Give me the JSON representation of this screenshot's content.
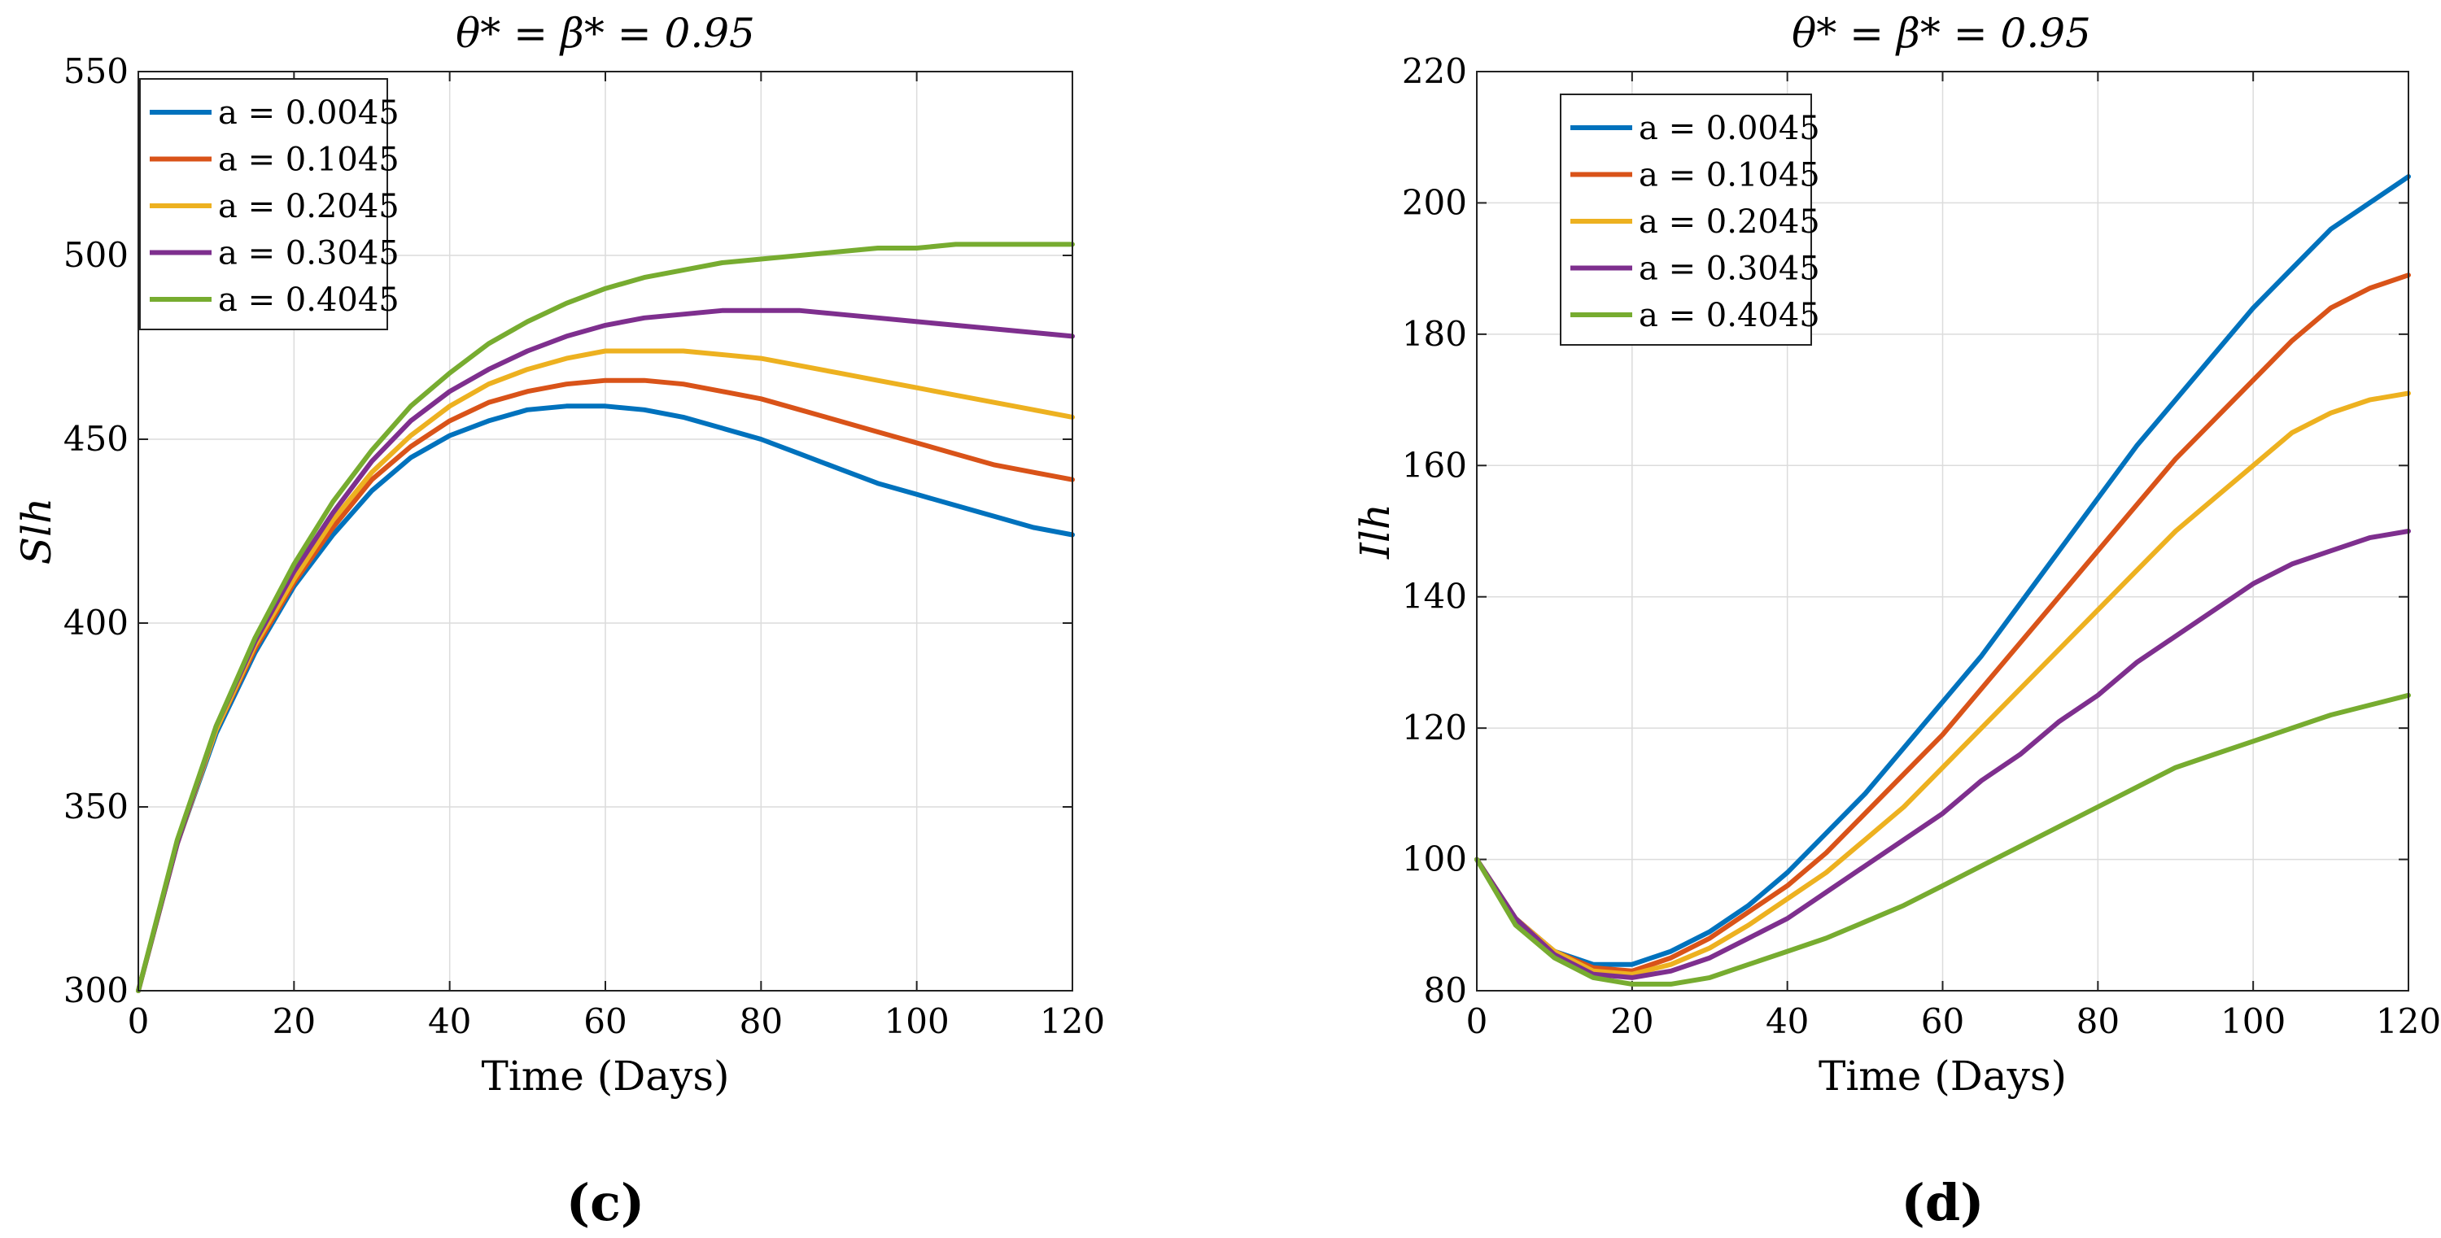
{
  "chart_data": [
    {
      "type": "line",
      "panel_label": "(c)",
      "title": "θ* = β* = 0.95",
      "xlabel": "Time (Days)",
      "ylabel": "Slh",
      "xlim": [
        0,
        120
      ],
      "ylim": [
        300,
        550
      ],
      "xticks": [
        0,
        20,
        40,
        60,
        80,
        100,
        120
      ],
      "yticks": [
        300,
        350,
        400,
        450,
        500,
        550
      ],
      "grid": true,
      "legend_position": "top-left",
      "x": [
        0,
        5,
        10,
        15,
        20,
        25,
        30,
        35,
        40,
        45,
        50,
        55,
        60,
        65,
        70,
        75,
        80,
        85,
        90,
        95,
        100,
        105,
        110,
        115,
        120
      ],
      "series": [
        {
          "name": "a = 0.0045",
          "color": "#0072BD",
          "values": [
            300,
            340,
            370,
            392,
            410,
            424,
            436,
            445,
            451,
            455,
            458,
            459,
            459,
            458,
            456,
            453,
            450,
            446,
            442,
            438,
            435,
            432,
            429,
            426,
            424
          ]
        },
        {
          "name": "a = 0.1045",
          "color": "#D95319",
          "values": [
            300,
            340,
            371,
            393,
            411,
            426,
            439,
            448,
            455,
            460,
            463,
            465,
            466,
            466,
            465,
            463,
            461,
            458,
            455,
            452,
            449,
            446,
            443,
            441,
            439
          ]
        },
        {
          "name": "a = 0.2045",
          "color": "#EDB120",
          "values": [
            300,
            340,
            371,
            394,
            412,
            428,
            441,
            451,
            459,
            465,
            469,
            472,
            474,
            474,
            474,
            473,
            472,
            470,
            468,
            466,
            464,
            462,
            460,
            458,
            456
          ]
        },
        {
          "name": "a = 0.3045",
          "color": "#7E2F8E",
          "values": [
            300,
            340,
            372,
            395,
            414,
            430,
            444,
            455,
            463,
            469,
            474,
            478,
            481,
            483,
            484,
            485,
            485,
            485,
            484,
            483,
            482,
            481,
            480,
            479,
            478
          ]
        },
        {
          "name": "a = 0.4045",
          "color": "#77AC30",
          "values": [
            300,
            341,
            372,
            396,
            416,
            433,
            447,
            459,
            468,
            476,
            482,
            487,
            491,
            494,
            496,
            498,
            499,
            500,
            501,
            502,
            502,
            503,
            503,
            503,
            503
          ]
        }
      ]
    },
    {
      "type": "line",
      "panel_label": "(d)",
      "title": "θ* = β* = 0.95",
      "xlabel": "Time (Days)",
      "ylabel": "Ilh",
      "xlim": [
        0,
        120
      ],
      "ylim": [
        80,
        220
      ],
      "xticks": [
        0,
        20,
        40,
        60,
        80,
        100,
        120
      ],
      "yticks": [
        80,
        100,
        120,
        140,
        160,
        180,
        200,
        220
      ],
      "grid": true,
      "legend_position": "top-left",
      "x": [
        0,
        5,
        10,
        15,
        20,
        25,
        30,
        35,
        40,
        45,
        50,
        55,
        60,
        65,
        70,
        75,
        80,
        85,
        90,
        95,
        100,
        105,
        110,
        115,
        120
      ],
      "series": [
        {
          "name": "a = 0.0045",
          "color": "#0072BD",
          "values": [
            100,
            91,
            86,
            84,
            84,
            86,
            89,
            93,
            98,
            104,
            110,
            117,
            124,
            131,
            139,
            147,
            155,
            163,
            170,
            177,
            184,
            190,
            196,
            200,
            204
          ]
        },
        {
          "name": "a = 0.1045",
          "color": "#D95319",
          "values": [
            100,
            91,
            86,
            83.5,
            83,
            85,
            88,
            92,
            96,
            101,
            107,
            113,
            119,
            126,
            133,
            140,
            147,
            154,
            161,
            167,
            173,
            179,
            184,
            187,
            189
          ]
        },
        {
          "name": "a = 0.2045",
          "color": "#EDB120",
          "values": [
            100,
            91,
            86,
            83,
            82.5,
            84,
            86.5,
            90,
            94,
            98,
            103,
            108,
            114,
            120,
            126,
            132,
            138,
            144,
            150,
            155,
            160,
            165,
            168,
            170,
            171
          ]
        },
        {
          "name": "a = 0.3045",
          "color": "#7E2F8E",
          "values": [
            100,
            91,
            85.5,
            82.5,
            82,
            83,
            85,
            88,
            91,
            95,
            99,
            103,
            107,
            112,
            116,
            121,
            125,
            130,
            134,
            138,
            142,
            145,
            147,
            149,
            150
          ]
        },
        {
          "name": "a = 0.4045",
          "color": "#77AC30",
          "values": [
            100,
            90,
            85,
            82,
            81,
            81,
            82,
            84,
            86,
            88,
            90.5,
            93,
            96,
            99,
            102,
            105,
            108,
            111,
            114,
            116,
            118,
            120,
            122,
            123.5,
            125
          ]
        }
      ]
    }
  ]
}
